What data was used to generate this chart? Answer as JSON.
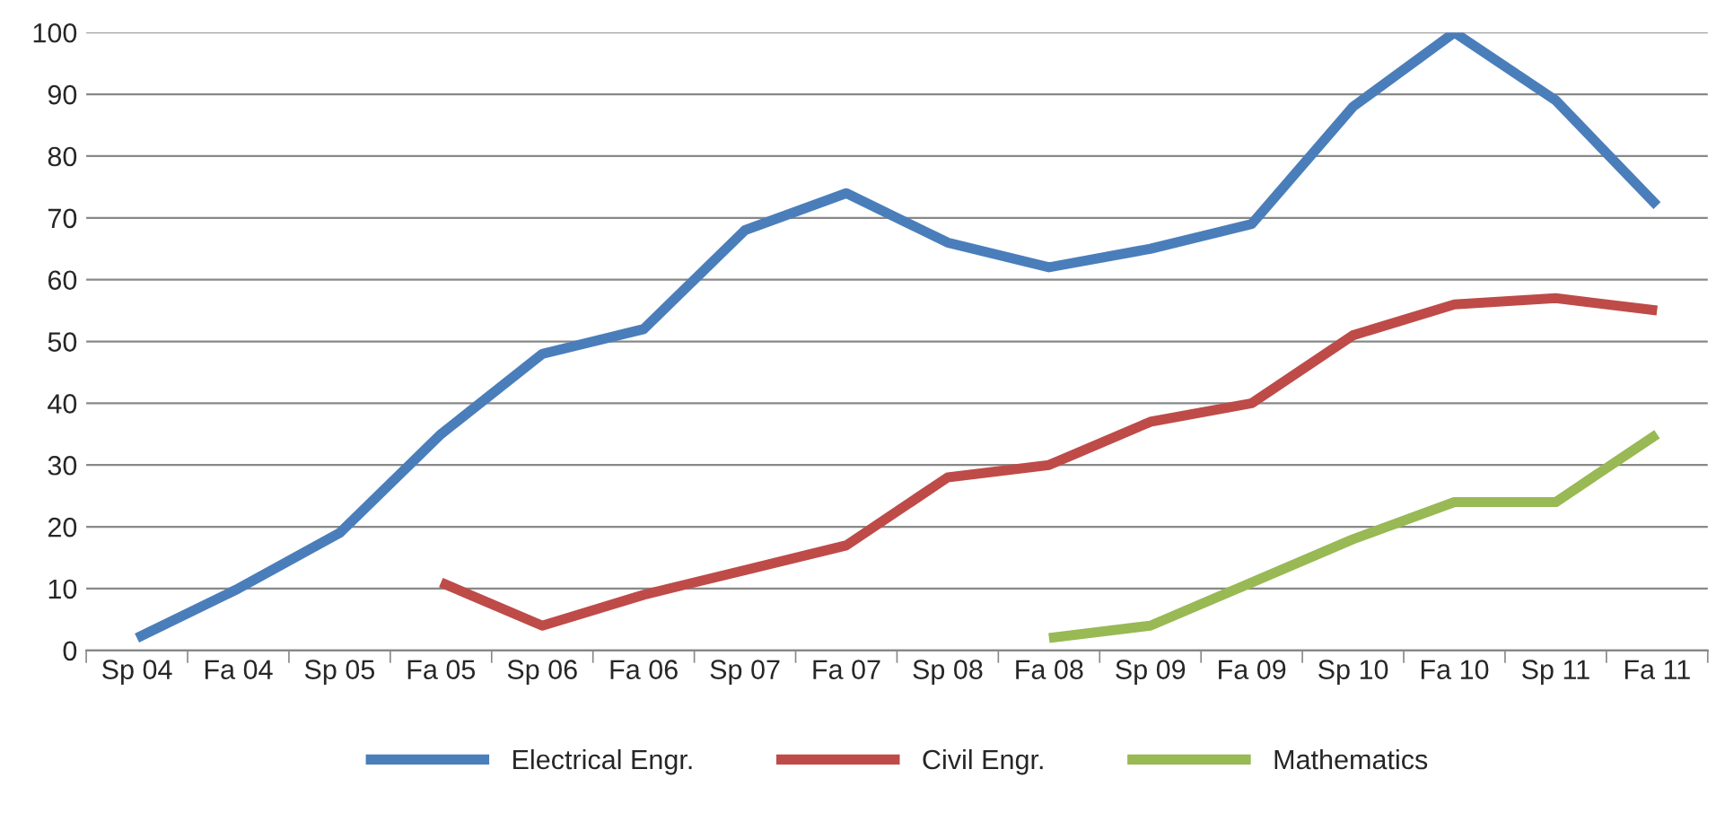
{
  "chart_data": {
    "type": "line",
    "categories": [
      "Sp 04",
      "Fa 04",
      "Sp 05",
      "Fa 05",
      "Sp 06",
      "Fa 06",
      "Sp 07",
      "Fa 07",
      "Sp 08",
      "Fa 08",
      "Sp 09",
      "Fa 09",
      "Sp 10",
      "Fa 10",
      "Sp 11",
      "Fa 11"
    ],
    "series": [
      {
        "name": "Electrical Engr.",
        "color": "#4a7ebb",
        "values": [
          2,
          10,
          19,
          35,
          48,
          52,
          68,
          74,
          66,
          62,
          65,
          69,
          88,
          100,
          89,
          72
        ]
      },
      {
        "name": "Civil Engr.",
        "color": "#be4b48",
        "values": [
          null,
          null,
          null,
          11,
          4,
          9,
          13,
          17,
          28,
          30,
          37,
          40,
          51,
          56,
          57,
          55
        ]
      },
      {
        "name": "Mathematics",
        "color": "#98b954",
        "values": [
          null,
          null,
          null,
          null,
          null,
          null,
          null,
          null,
          null,
          2,
          4,
          11,
          18,
          24,
          24,
          35
        ]
      }
    ],
    "ylim": [
      0,
      100
    ],
    "yticks": [
      0,
      10,
      20,
      30,
      40,
      50,
      60,
      70,
      80,
      90,
      100
    ],
    "grid": "y",
    "legend": "bottom",
    "marker": "none",
    "line_style": "solid"
  }
}
